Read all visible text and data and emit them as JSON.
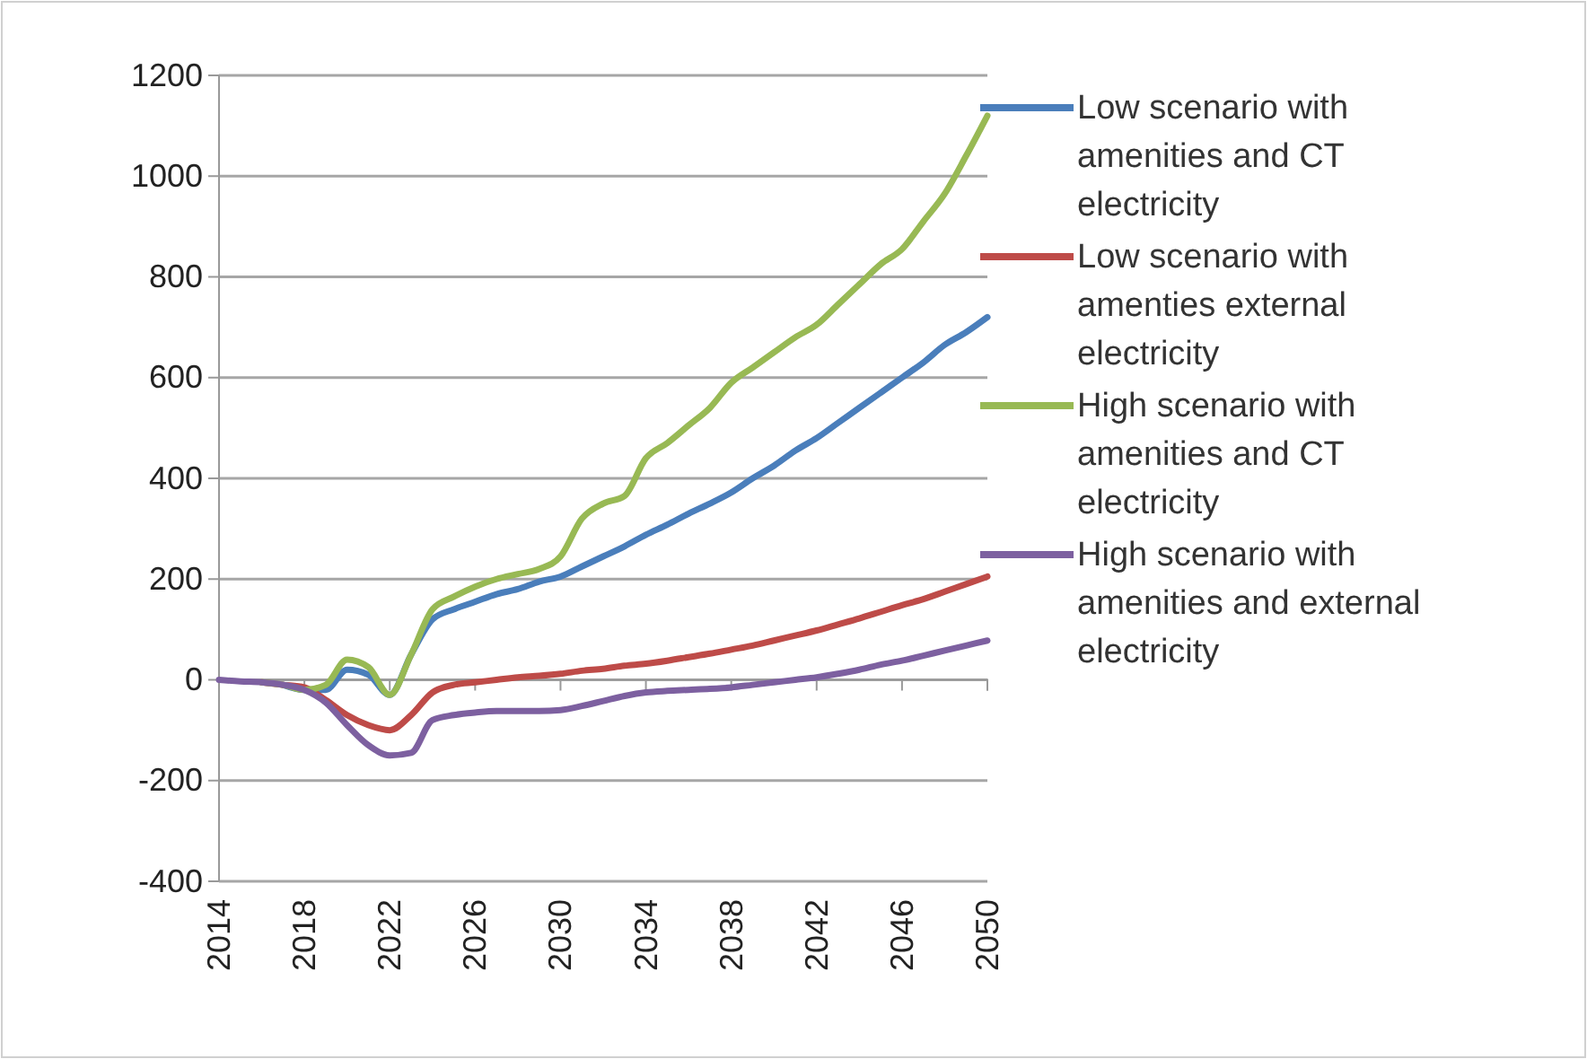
{
  "chart_data": {
    "type": "line",
    "x": [
      2014,
      2015,
      2016,
      2017,
      2018,
      2019,
      2020,
      2021,
      2022,
      2023,
      2024,
      2025,
      2026,
      2027,
      2028,
      2029,
      2030,
      2031,
      2032,
      2033,
      2034,
      2035,
      2036,
      2037,
      2038,
      2039,
      2040,
      2041,
      2042,
      2043,
      2044,
      2045,
      2046,
      2047,
      2048,
      2049,
      2050
    ],
    "xlim": [
      2014,
      2050
    ],
    "xticks": [
      2014,
      2018,
      2022,
      2026,
      2030,
      2034,
      2038,
      2042,
      2046,
      2050
    ],
    "ylim": [
      -400,
      1200
    ],
    "yticks": [
      -400,
      -200,
      0,
      200,
      400,
      600,
      800,
      1000,
      1200
    ],
    "grid": "y",
    "legend": "right",
    "marker": "none",
    "line_style": "solid",
    "series": [
      {
        "name": "Low scenario with amenities and CT electricity",
        "color": "#4a7ebb",
        "values": [
          null,
          null,
          null,
          -10,
          -20,
          -20,
          20,
          10,
          -30,
          50,
          120,
          140,
          155,
          170,
          180,
          195,
          205,
          225,
          245,
          265,
          288,
          308,
          330,
          350,
          372,
          400,
          425,
          455,
          480,
          510,
          540,
          570,
          600,
          630,
          665,
          690,
          720
        ]
      },
      {
        "name": "Low scenario with amenties external electricity",
        "color": "#be4b48",
        "values": [
          null,
          null,
          -5,
          -10,
          -15,
          -40,
          -70,
          -90,
          -100,
          -70,
          -25,
          -10,
          -5,
          0,
          5,
          8,
          12,
          18,
          22,
          28,
          32,
          38,
          45,
          52,
          60,
          68,
          78,
          88,
          98,
          110,
          122,
          135,
          148,
          160,
          175,
          190,
          205
        ]
      },
      {
        "name": "High scenario with amenities and CT electricity",
        "color": "#98b954",
        "values": [
          null,
          null,
          -5,
          -10,
          -20,
          -10,
          40,
          25,
          -30,
          50,
          140,
          165,
          185,
          200,
          210,
          220,
          245,
          320,
          350,
          365,
          440,
          470,
          505,
          540,
          590,
          620,
          650,
          680,
          705,
          745,
          785,
          825,
          855,
          910,
          965,
          1040,
          1120
        ]
      },
      {
        "name": "High scenario with amenities and external electricity",
        "color": "#7d60a0",
        "values": [
          0,
          -3,
          -5,
          -10,
          -20,
          -45,
          -90,
          -130,
          -150,
          -145,
          -80,
          -70,
          -65,
          -62,
          -62,
          -62,
          -60,
          -52,
          -42,
          -32,
          -25,
          -22,
          -20,
          -18,
          -15,
          -10,
          -5,
          0,
          5,
          12,
          20,
          30,
          38,
          48,
          58,
          68,
          78
        ]
      }
    ]
  }
}
